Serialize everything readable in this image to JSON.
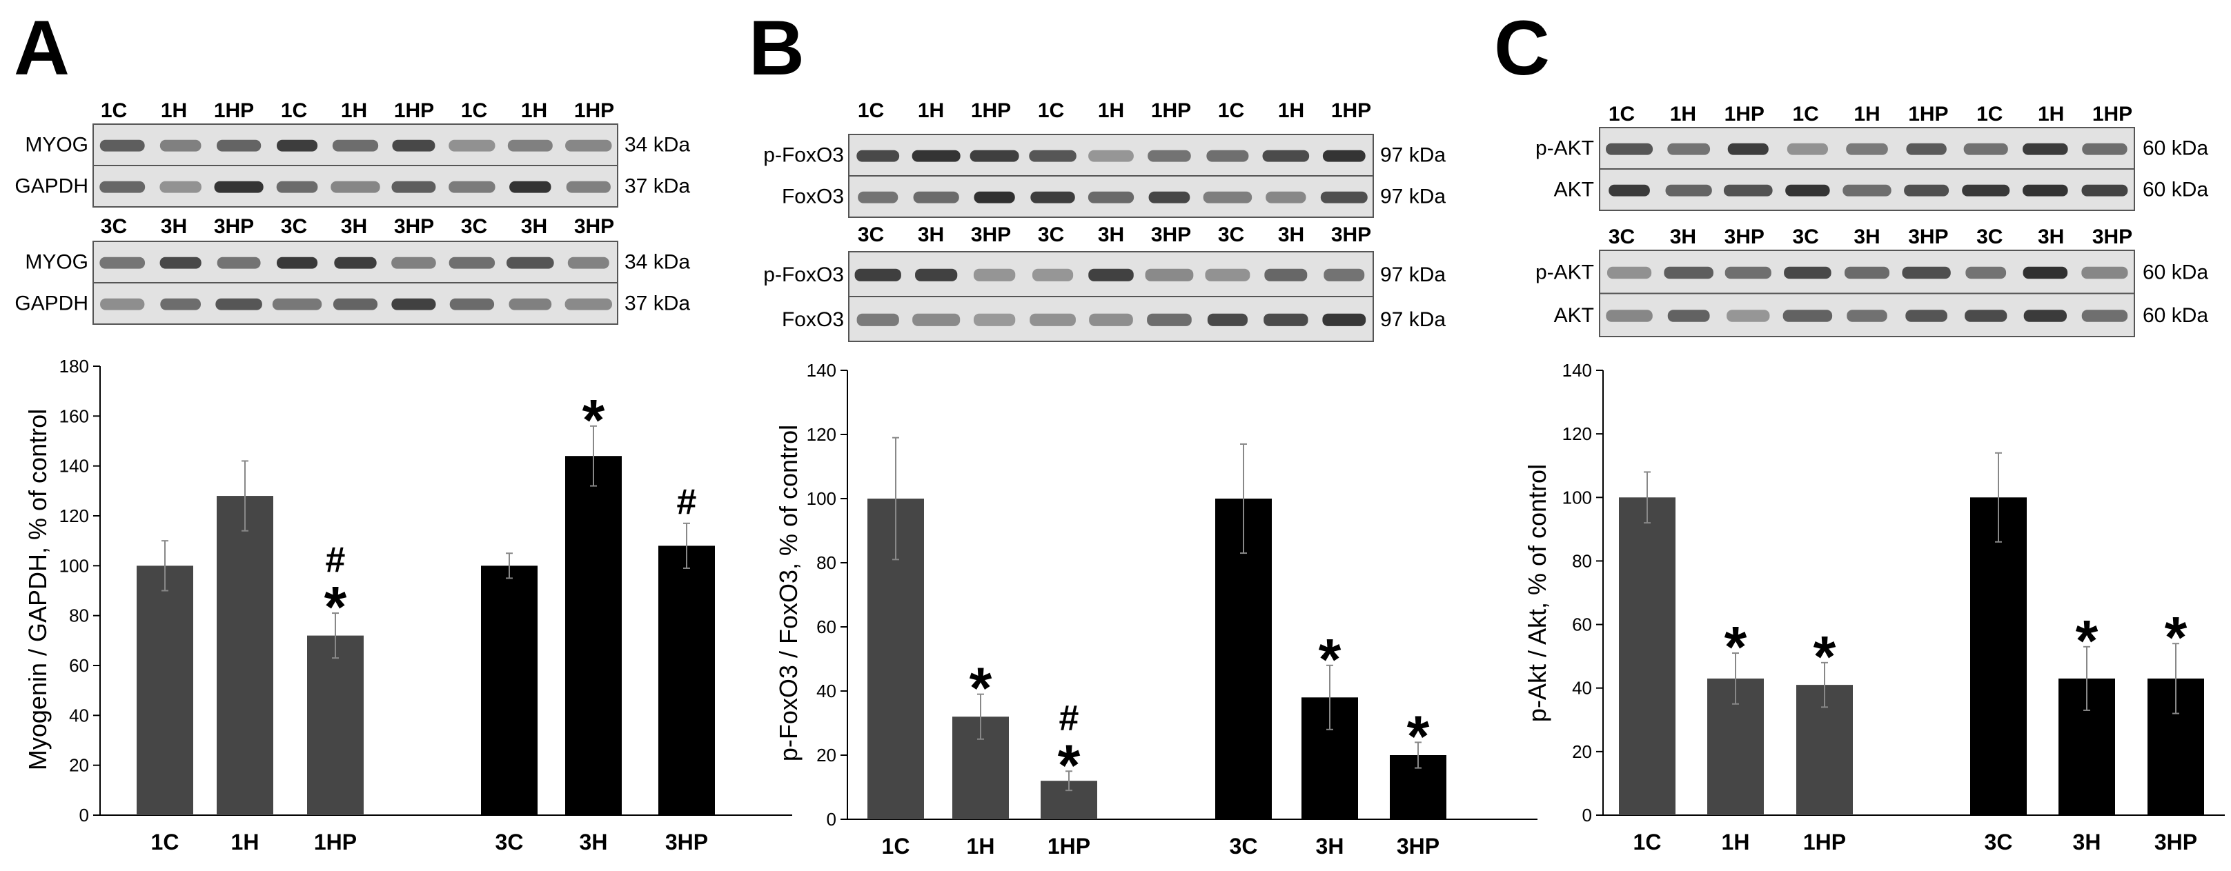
{
  "colors": {
    "group1": "#464646",
    "group3": "#000000",
    "axis": "#000000",
    "blot_bg": "#e2e2e2"
  },
  "panels": [
    {
      "letter": "A",
      "blots": [
        {
          "lanes": [
            "1C",
            "1H",
            "1HP",
            "1C",
            "1H",
            "1HP",
            "1C",
            "1H",
            "1HP"
          ],
          "strips": [
            {
              "label": "MYOG",
              "kda": "34 kDa"
            },
            {
              "label": "GAPDH",
              "kda": "37 kDa"
            }
          ]
        },
        {
          "lanes": [
            "3C",
            "3H",
            "3HP",
            "3C",
            "3H",
            "3HP",
            "3C",
            "3H",
            "3HP"
          ],
          "strips": [
            {
              "label": "MYOG",
              "kda": "34 kDa"
            },
            {
              "label": "GAPDH",
              "kda": "37 kDa"
            }
          ]
        }
      ]
    },
    {
      "letter": "B",
      "blots": [
        {
          "lanes": [
            "1C",
            "1H",
            "1HP",
            "1C",
            "1H",
            "1HP",
            "1C",
            "1H",
            "1HP"
          ],
          "strips": [
            {
              "label": "p-FoxO3",
              "kda": "97 kDa"
            },
            {
              "label": "FoxO3",
              "kda": "97 kDa"
            }
          ]
        },
        {
          "lanes": [
            "3C",
            "3H",
            "3HP",
            "3C",
            "3H",
            "3HP",
            "3C",
            "3H",
            "3HP"
          ],
          "strips": [
            {
              "label": "p-FoxO3",
              "kda": "97 kDa"
            },
            {
              "label": "FoxO3",
              "kda": "97 kDa"
            }
          ]
        }
      ]
    },
    {
      "letter": "C",
      "blots": [
        {
          "lanes": [
            "1C",
            "1H",
            "1HP",
            "1C",
            "1H",
            "1HP",
            "1C",
            "1H",
            "1HP"
          ],
          "strips": [
            {
              "label": "p-AKT",
              "kda": "60 kDa"
            },
            {
              "label": "AKT",
              "kda": "60 kDa"
            }
          ]
        },
        {
          "lanes": [
            "3C",
            "3H",
            "3HP",
            "3C",
            "3H",
            "3HP",
            "3C",
            "3H",
            "3HP"
          ],
          "strips": [
            {
              "label": "p-AKT",
              "kda": "60 kDa"
            },
            {
              "label": "AKT",
              "kda": "60 kDa"
            }
          ]
        }
      ]
    }
  ],
  "chart_data": [
    {
      "type": "bar",
      "ylabel": "Myogenin / GAPDH, % of control",
      "ylim": [
        0,
        180
      ],
      "yticks": [
        0,
        20,
        40,
        60,
        80,
        100,
        120,
        140,
        160,
        180
      ],
      "categories": [
        "1C",
        "1H",
        "1HP",
        "3C",
        "3H",
        "3HP"
      ],
      "values": [
        100,
        128,
        72,
        100,
        144,
        108
      ],
      "errors": [
        10,
        14,
        9,
        5,
        12,
        9
      ],
      "annotations": [
        "",
        "",
        "#\n*",
        "",
        "*",
        "#"
      ],
      "grid": false
    },
    {
      "type": "bar",
      "ylabel": "p-FoxO3 / FoxO3, % of control",
      "ylim": [
        0,
        140
      ],
      "yticks": [
        0,
        20,
        40,
        60,
        80,
        100,
        120,
        140
      ],
      "categories": [
        "1C",
        "1H",
        "1HP",
        "3C",
        "3H",
        "3HP"
      ],
      "values": [
        100,
        32,
        12,
        100,
        38,
        20
      ],
      "errors": [
        19,
        7,
        3,
        17,
        10,
        4
      ],
      "annotations": [
        "",
        "*",
        "#\n*",
        "",
        "*",
        "*"
      ],
      "grid": false
    },
    {
      "type": "bar",
      "ylabel": "p-Akt / Akt, % of control",
      "ylim": [
        0,
        140
      ],
      "yticks": [
        0,
        20,
        40,
        60,
        80,
        100,
        120,
        140
      ],
      "categories": [
        "1C",
        "1H",
        "1HP",
        "3C",
        "3H",
        "3HP"
      ],
      "values": [
        100,
        43,
        41,
        100,
        43,
        43
      ],
      "errors": [
        8,
        8,
        7,
        14,
        10,
        11
      ],
      "annotations": [
        "",
        "*",
        "*",
        "",
        "*",
        "*"
      ],
      "grid": false
    }
  ]
}
